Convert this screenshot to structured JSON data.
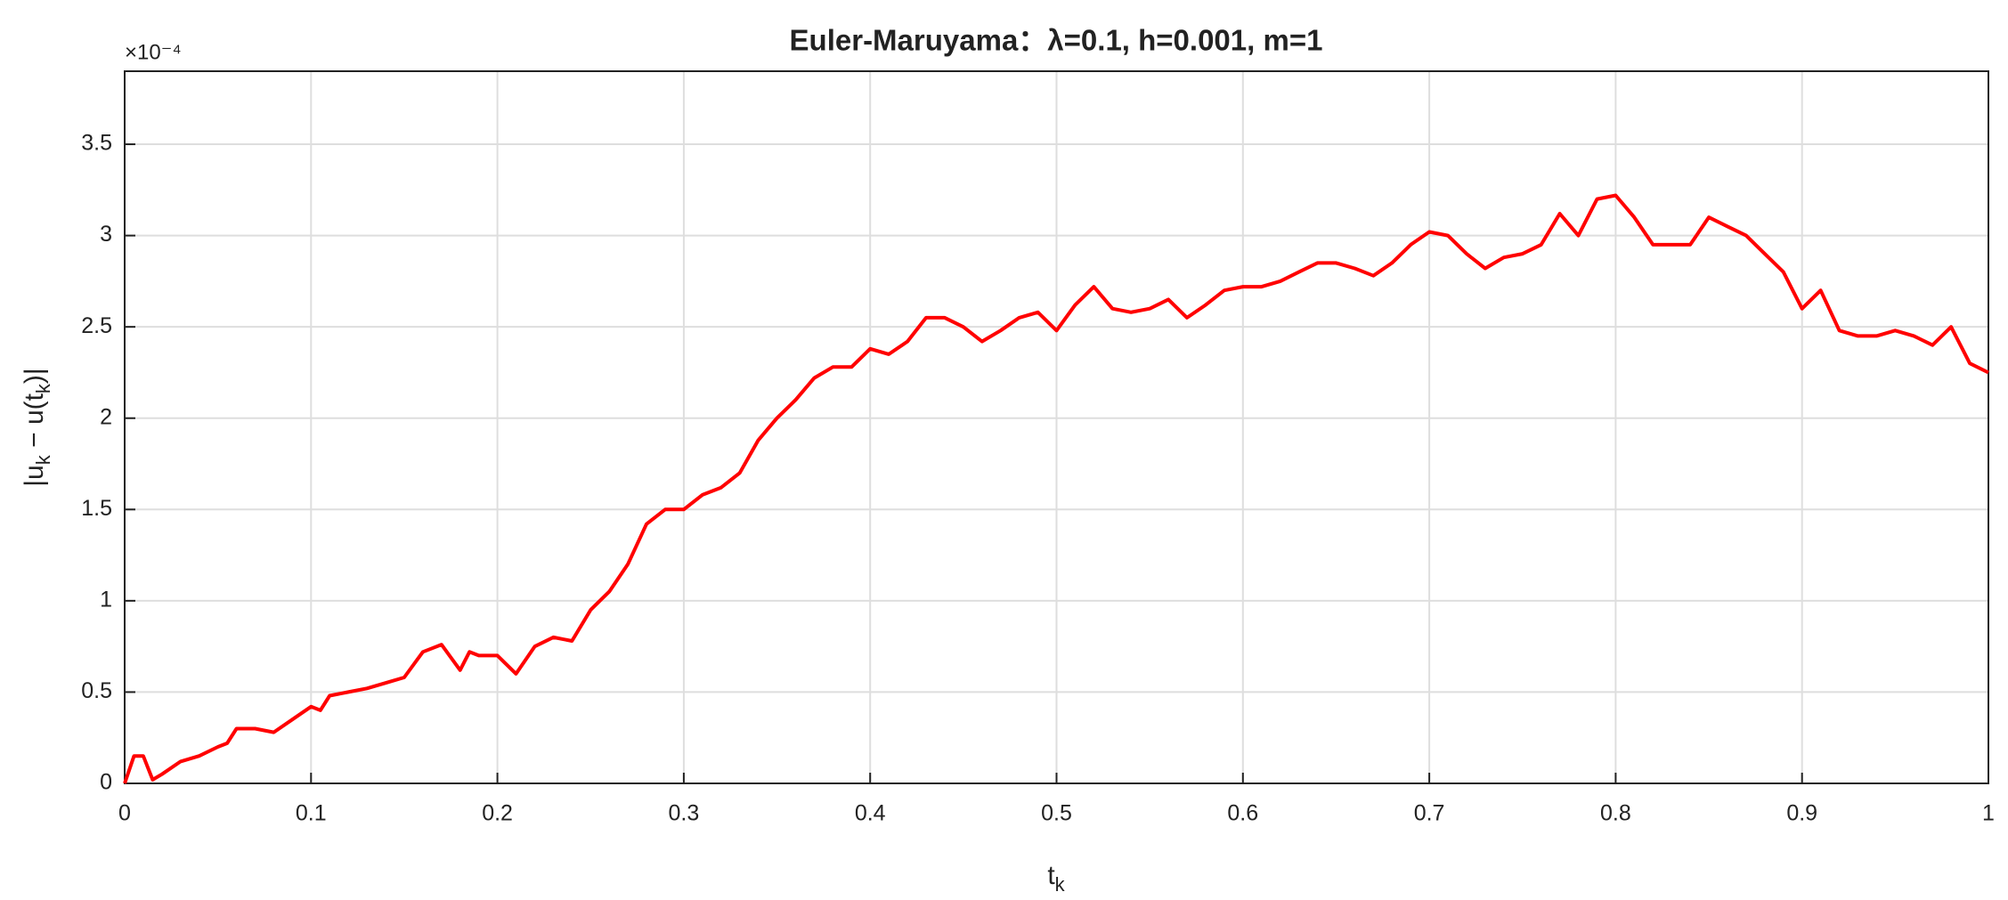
{
  "chart_data": {
    "type": "line",
    "title": "Euler-Maruyama：λ=0.1, h=0.001, m=1",
    "y_exponent": "×10⁻⁴",
    "xlabel_parts": [
      "t",
      "k"
    ],
    "ylabel_parts": [
      "|u",
      "k",
      " − u(t",
      "k",
      ")|"
    ],
    "xlim": [
      0,
      1
    ],
    "xticks": [
      0,
      0.1,
      0.2,
      0.3,
      0.4,
      0.5,
      0.6,
      0.7,
      0.8,
      0.9,
      1
    ],
    "ylim": [
      0,
      3.9
    ],
    "yticks": [
      0,
      0.5,
      1,
      1.5,
      2,
      2.5,
      3,
      3.5
    ],
    "grid": true,
    "series": [
      {
        "color": "#ff0000",
        "x": [
          0,
          0.005,
          0.01,
          0.015,
          0.02,
          0.03,
          0.04,
          0.05,
          0.055,
          0.06,
          0.07,
          0.08,
          0.09,
          0.1,
          0.105,
          0.11,
          0.12,
          0.13,
          0.14,
          0.15,
          0.16,
          0.17,
          0.18,
          0.185,
          0.19,
          0.2,
          0.21,
          0.22,
          0.23,
          0.24,
          0.25,
          0.26,
          0.27,
          0.28,
          0.29,
          0.3,
          0.31,
          0.32,
          0.33,
          0.34,
          0.35,
          0.36,
          0.37,
          0.38,
          0.39,
          0.4,
          0.41,
          0.42,
          0.43,
          0.44,
          0.45,
          0.46,
          0.47,
          0.48,
          0.49,
          0.5,
          0.51,
          0.52,
          0.53,
          0.54,
          0.55,
          0.56,
          0.57,
          0.58,
          0.59,
          0.6,
          0.61,
          0.62,
          0.63,
          0.64,
          0.65,
          0.66,
          0.67,
          0.68,
          0.69,
          0.7,
          0.71,
          0.72,
          0.73,
          0.74,
          0.75,
          0.76,
          0.77,
          0.78,
          0.79,
          0.8,
          0.81,
          0.82,
          0.83,
          0.84,
          0.85,
          0.86,
          0.87,
          0.88,
          0.89,
          0.9,
          0.91,
          0.92,
          0.93,
          0.94,
          0.95,
          0.96,
          0.97,
          0.98,
          0.99,
          1.0
        ],
        "values": [
          0,
          0.15,
          0.15,
          0.02,
          0.05,
          0.12,
          0.15,
          0.2,
          0.22,
          0.3,
          0.3,
          0.28,
          0.35,
          0.42,
          0.4,
          0.48,
          0.5,
          0.52,
          0.55,
          0.58,
          0.72,
          0.76,
          0.62,
          0.72,
          0.7,
          0.7,
          0.6,
          0.75,
          0.8,
          0.78,
          0.95,
          1.05,
          1.2,
          1.42,
          1.5,
          1.5,
          1.58,
          1.62,
          1.7,
          1.88,
          2.0,
          2.1,
          2.22,
          2.28,
          2.28,
          2.38,
          2.35,
          2.42,
          2.55,
          2.55,
          2.5,
          2.42,
          2.48,
          2.55,
          2.58,
          2.48,
          2.62,
          2.72,
          2.6,
          2.58,
          2.6,
          2.65,
          2.55,
          2.62,
          2.7,
          2.72,
          2.72,
          2.75,
          2.8,
          2.85,
          2.85,
          2.82,
          2.78,
          2.85,
          2.95,
          3.02,
          3.0,
          2.9,
          2.82,
          2.88,
          2.9,
          2.95,
          3.12,
          3.0,
          3.2,
          3.22,
          3.1,
          2.95,
          2.95,
          2.95,
          3.1,
          3.05,
          3.0,
          2.9,
          2.8,
          2.6,
          2.7,
          2.48,
          2.45,
          2.45,
          2.48,
          2.45,
          2.4,
          2.5,
          2.3,
          2.25
        ]
      }
    ]
  }
}
